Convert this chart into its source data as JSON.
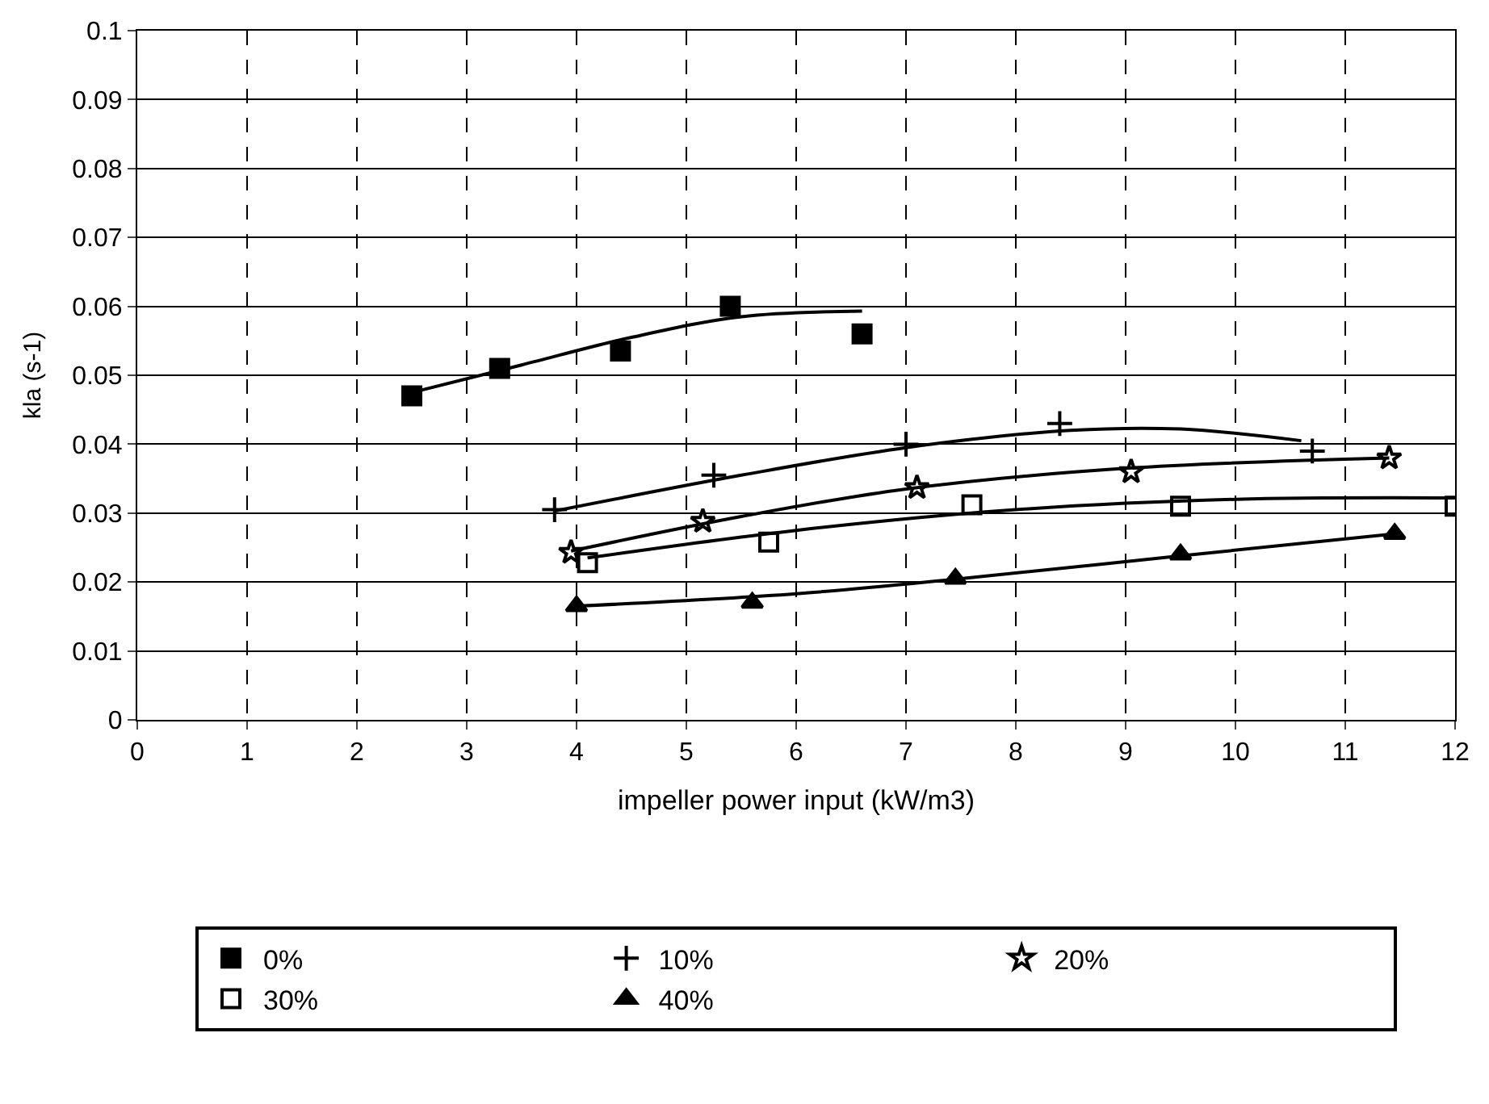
{
  "chart_data": {
    "type": "scatter",
    "xlabel": "impeller power input (kW/m3)",
    "ylabel": "kla (s-1)",
    "xlim": [
      0,
      12
    ],
    "xticks": [
      0,
      1,
      2,
      3,
      4,
      5,
      6,
      7,
      8,
      9,
      10,
      11,
      12
    ],
    "ylim": [
      0,
      0.1
    ],
    "yticks": [
      0,
      0.01,
      0.02,
      0.03,
      0.04,
      0.05,
      0.06,
      0.07,
      0.08,
      0.09,
      0.1
    ],
    "grid": true,
    "legend": "bottom",
    "series": [
      {
        "name": "0%",
        "color": "#000000",
        "marker": "square",
        "x": [
          2.5,
          3.3,
          4.4,
          5.4,
          6.6
        ],
        "values": [
          0.047,
          0.051,
          0.0535,
          0.06,
          0.056
        ]
      },
      {
        "name": "10%",
        "color": "#000000",
        "marker": "cross",
        "x": [
          3.8,
          5.25,
          7.0,
          8.4,
          10.7
        ],
        "values": [
          0.0305,
          0.0355,
          0.04,
          0.043,
          0.039
        ]
      },
      {
        "name": "20%",
        "color": "#000000",
        "marker": "star",
        "x": [
          3.95,
          5.15,
          7.1,
          9.05,
          11.4
        ],
        "values": [
          0.0243,
          0.0288,
          0.0337,
          0.036,
          0.038
        ]
      },
      {
        "name": "30%",
        "color": "#000000",
        "marker": "square-open",
        "x": [
          4.1,
          5.75,
          7.6,
          9.5,
          12.0
        ],
        "values": [
          0.0228,
          0.0258,
          0.0312,
          0.031,
          0.031
        ]
      },
      {
        "name": "40%",
        "color": "#000000",
        "marker": "triangle",
        "x": [
          4.0,
          5.6,
          7.45,
          9.5,
          11.45
        ],
        "values": [
          0.0165,
          0.017,
          0.0205,
          0.024,
          0.027
        ]
      },
      {
        "type": "line",
        "color": "#000000",
        "marker": "none",
        "x": [
          2.5,
          3.5,
          4.5,
          5.5,
          6.6
        ],
        "values": [
          0.0475,
          0.0515,
          0.0555,
          0.0585,
          0.0593
        ]
      },
      {
        "type": "line",
        "color": "#000000",
        "marker": "none",
        "x": [
          3.8,
          5.5,
          7.0,
          8.5,
          9.5,
          10.6
        ],
        "values": [
          0.0303,
          0.0355,
          0.0395,
          0.042,
          0.0422,
          0.0405
        ]
      },
      {
        "type": "line",
        "color": "#000000",
        "marker": "none",
        "x": [
          3.95,
          5.5,
          7.0,
          9.0,
          11.4
        ],
        "values": [
          0.0245,
          0.0295,
          0.0335,
          0.0365,
          0.038
        ]
      },
      {
        "type": "line",
        "color": "#000000",
        "marker": "none",
        "x": [
          4.1,
          6.0,
          8.0,
          10.0,
          12.0
        ],
        "values": [
          0.0235,
          0.0275,
          0.0305,
          0.032,
          0.0322
        ]
      },
      {
        "type": "line",
        "color": "#000000",
        "marker": "none",
        "x": [
          4.0,
          6.0,
          7.5,
          9.5,
          11.45
        ],
        "values": [
          0.0165,
          0.0183,
          0.0205,
          0.0238,
          0.027
        ]
      }
    ]
  }
}
